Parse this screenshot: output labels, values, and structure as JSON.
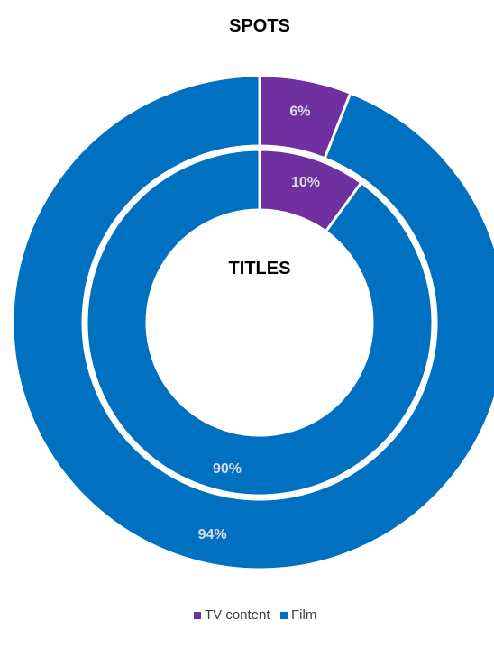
{
  "chart_data": {
    "type": "pie",
    "variant": "nested-donut",
    "rings": [
      {
        "name": "SPOTS",
        "position": "outer",
        "slices": [
          {
            "label": "TV content",
            "value": 6,
            "display": "6%"
          },
          {
            "label": "Film",
            "value": 94,
            "display": "94%"
          }
        ]
      },
      {
        "name": "TITLES",
        "position": "inner",
        "slices": [
          {
            "label": "TV content",
            "value": 10,
            "display": "10%"
          },
          {
            "label": "Film",
            "value": 90,
            "display": "90%"
          }
        ]
      }
    ],
    "legend": {
      "placement": "bottom",
      "entries": [
        {
          "name": "TV content",
          "color": "#7030a0"
        },
        {
          "name": "Film",
          "color": "#0070c0"
        }
      ]
    }
  }
}
